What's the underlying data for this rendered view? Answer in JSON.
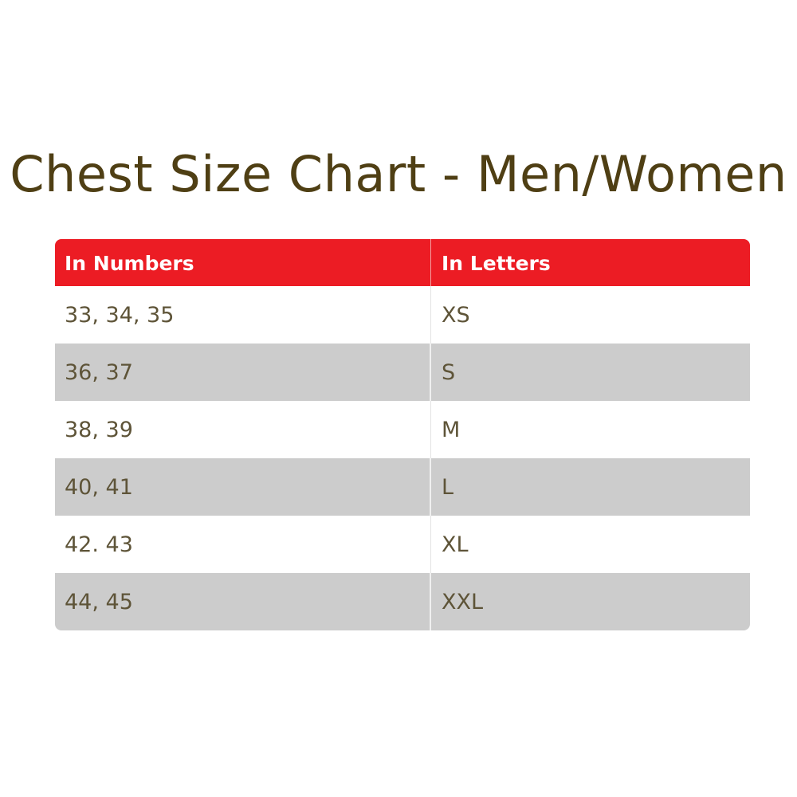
{
  "title": "Chest Size Chart - Men/Women",
  "table": {
    "headers": [
      "In Numbers",
      "In Letters"
    ],
    "rows": [
      [
        "33, 34, 35",
        "XS"
      ],
      [
        "36, 37",
        "S"
      ],
      [
        "38, 39",
        "M"
      ],
      [
        "40, 41",
        "L"
      ],
      [
        "42. 43",
        "XL"
      ],
      [
        "44, 45",
        "XXL"
      ]
    ]
  },
  "colors": {
    "header": "#ec1c24",
    "stripe": "#cccccc",
    "title": "#4f3f14",
    "text": "#5e5438"
  }
}
